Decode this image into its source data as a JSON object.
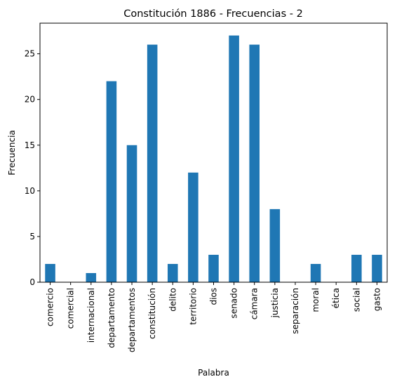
{
  "chart_data": {
    "type": "bar",
    "title": "Constitución 1886 - Frecuencias - 2",
    "xlabel": "Palabra",
    "ylabel": "Frecuencia",
    "categories": [
      "comercio",
      "comercial",
      "internacional",
      "departamento",
      "departamentos",
      "constitución",
      "delito",
      "territorio",
      "dios",
      "senado",
      "cámara",
      "justicia",
      "separación",
      "moral",
      "ética",
      "social",
      "gasto"
    ],
    "values": [
      2,
      0,
      1,
      22,
      15,
      26,
      2,
      12,
      3,
      27,
      26,
      8,
      0,
      2,
      0,
      3,
      3
    ],
    "yticks": [
      0,
      5,
      10,
      15,
      20,
      25
    ],
    "ylim": [
      0,
      28.35
    ],
    "grid": false,
    "bar_color": "#1f77b4"
  }
}
